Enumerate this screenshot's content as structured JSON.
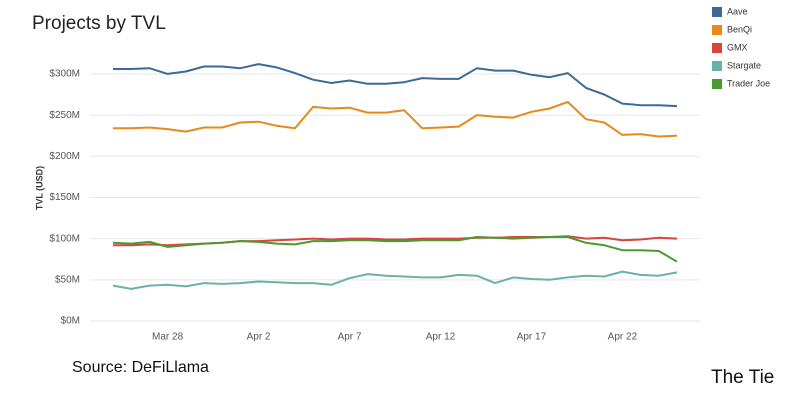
{
  "chart_data": {
    "type": "line",
    "title": "Projects by TVL",
    "y_label": "TVL (USD)",
    "categories": [
      null,
      null,
      null,
      "Mar 28",
      null,
      null,
      null,
      null,
      "Apr 2",
      null,
      null,
      null,
      null,
      "Apr 7",
      null,
      null,
      null,
      null,
      "Apr 12",
      null,
      null,
      null,
      null,
      "Apr 17",
      null,
      null,
      null,
      null,
      "Apr 22",
      null,
      null,
      null
    ],
    "series": [
      {
        "name": "Aave",
        "color": "#3b6b94",
        "values": [
          306,
          306,
          307,
          300,
          303,
          309,
          309,
          307,
          312,
          308,
          301,
          293,
          289,
          292,
          288,
          288,
          290,
          295,
          294,
          294,
          307,
          304,
          304,
          299,
          296,
          301,
          283,
          275,
          264,
          262,
          262,
          261
        ]
      },
      {
        "name": "BenQi",
        "color": "#e8891c",
        "values": [
          234,
          234,
          235,
          233,
          230,
          235,
          235,
          241,
          242,
          237,
          234,
          260,
          258,
          259,
          253,
          253,
          256,
          234,
          235,
          236,
          250,
          248,
          247,
          254,
          258,
          266,
          245,
          241,
          226,
          227,
          224,
          225
        ]
      },
      {
        "name": "GMX",
        "color": "#d9453d",
        "values": [
          92,
          92,
          93,
          92,
          93,
          94,
          95,
          97,
          97,
          98,
          99,
          100,
          99,
          100,
          100,
          99,
          99,
          100,
          100,
          100,
          101,
          101,
          102,
          102,
          102,
          103,
          100,
          101,
          98,
          99,
          101,
          100
        ]
      },
      {
        "name": "Stargate",
        "color": "#6ab1a8",
        "values": [
          43,
          39,
          43,
          44,
          42,
          46,
          45,
          46,
          48,
          47,
          46,
          46,
          44,
          52,
          57,
          55,
          54,
          53,
          53,
          56,
          55,
          46,
          53,
          51,
          50,
          53,
          55,
          54,
          60,
          56,
          55,
          59
        ]
      },
      {
        "name": "Trader Joe",
        "color": "#4a9a2f",
        "values": [
          95,
          94,
          96,
          90,
          92,
          94,
          95,
          97,
          96,
          94,
          93,
          97,
          97,
          98,
          98,
          97,
          97,
          98,
          98,
          98,
          102,
          101,
          100,
          101,
          102,
          102,
          95,
          92,
          86,
          86,
          85,
          72
        ]
      }
    ],
    "ylim": [
      0,
      323
    ],
    "yticks": [
      {
        "value": 0,
        "label": "$0M"
      },
      {
        "value": 50,
        "label": "$50M"
      },
      {
        "value": 100,
        "label": "$100M"
      },
      {
        "value": 150,
        "label": "$150M"
      },
      {
        "value": 200,
        "label": "$200M"
      },
      {
        "value": 250,
        "label": "$250M"
      },
      {
        "value": 300,
        "label": "$300M"
      }
    ],
    "grid": true,
    "legend": "top-right"
  },
  "source": "Source: DeFiLlama",
  "logo": "The Tie"
}
